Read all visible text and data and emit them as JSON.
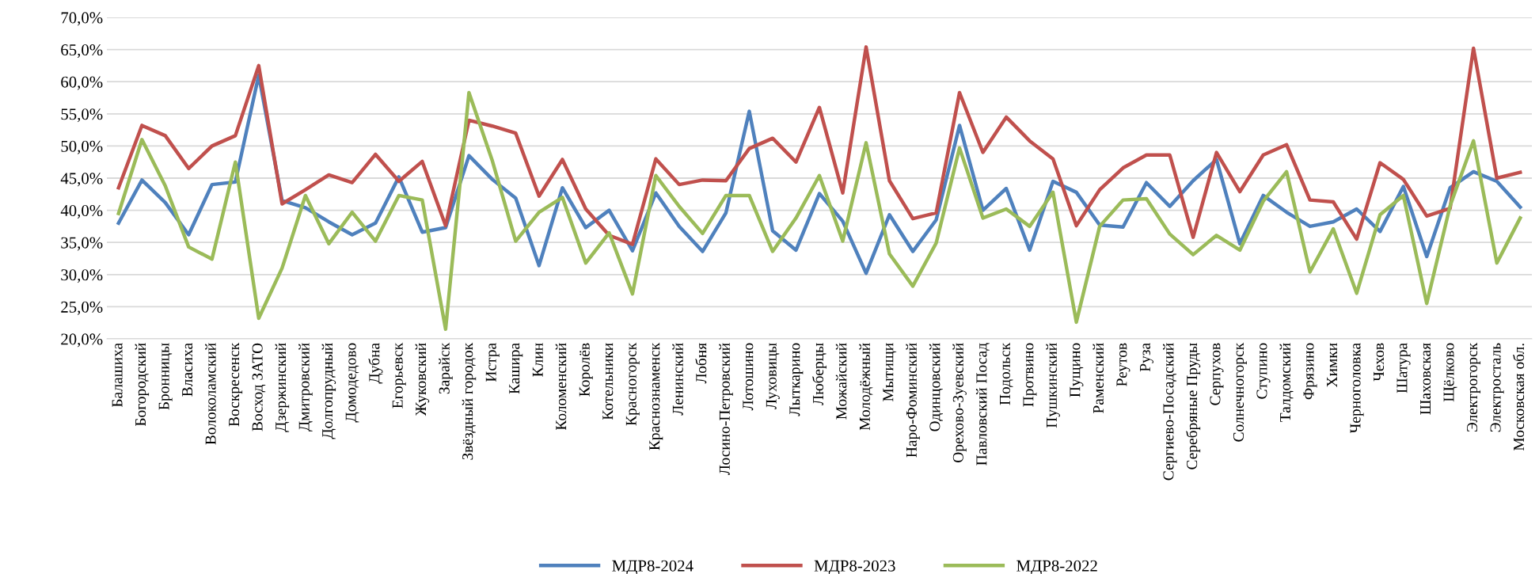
{
  "chart_data": {
    "type": "line",
    "categories": [
      "Балашиха",
      "Богородский",
      "Бронницы",
      "Власиха",
      "Волоколамский",
      "Воскресенск",
      "Восход ЗАТО",
      "Дзержинский",
      "Дмитровский",
      "Долгопрудный",
      "Домодедово",
      "Дубна",
      "Егорьевск",
      "Жуковский",
      "Зарайск",
      "Звёздный городок",
      "Истра",
      "Кашира",
      "Клин",
      "Коломенский",
      "Королёв",
      "Котельники",
      "Красногорск",
      "Краснознаменск",
      "Ленинский",
      "Лобня",
      "Лосино-Петровский",
      "Лотошино",
      "Луховицы",
      "Лыткарино",
      "Люберцы",
      "Можайский",
      "Молодёжный",
      "Мытищи",
      "Наро-Фоминский",
      "Одинцовский",
      "Орехово-Зуевский",
      "Павловский Посад",
      "Подольск",
      "Протвино",
      "Пушкинский",
      "Пущино",
      "Раменский",
      "Реутов",
      "Руза",
      "Сергиево-Посадский",
      "Серебряные Пруды",
      "Серпухов",
      "Солнечногорск",
      "Ступино",
      "Талдомский",
      "Фрязино",
      "Химки",
      "Черноголовка",
      "Чехов",
      "Шатура",
      "Шаховская",
      "Щёлково",
      "Электрогорск",
      "Электросталь",
      "Московская обл."
    ],
    "series": [
      {
        "name": "МДР8-2024",
        "color": "#4f81bd",
        "values": [
          38.0,
          44.7,
          41.2,
          36.2,
          44.0,
          44.4,
          61.0,
          41.5,
          40.4,
          38.2,
          36.2,
          38.0,
          45.2,
          36.6,
          37.3,
          48.5,
          44.8,
          41.9,
          31.4,
          43.5,
          37.3,
          40.0,
          33.7,
          42.7,
          37.5,
          33.6,
          39.6,
          55.4,
          36.8,
          33.8,
          42.6,
          38.3,
          30.2,
          39.3,
          33.6,
          38.5,
          53.2,
          40.0,
          43.4,
          33.8,
          44.5,
          42.8,
          37.7,
          37.4,
          44.3,
          40.6,
          44.6,
          47.9,
          34.8,
          42.3,
          39.7,
          37.5,
          38.2,
          40.2,
          36.7,
          43.7,
          32.8,
          43.5,
          46.0,
          44.5,
          40.5
        ]
      },
      {
        "name": "МДР8-2023",
        "color": "#c0504d",
        "values": [
          43.5,
          53.2,
          51.6,
          46.5,
          50.0,
          51.6,
          62.5,
          41.0,
          43.2,
          45.5,
          44.3,
          48.7,
          44.5,
          47.6,
          37.6,
          54.0,
          53.1,
          52.0,
          42.2,
          47.9,
          40.2,
          36.1,
          34.7,
          48.0,
          44.0,
          44.7,
          44.6,
          49.6,
          51.2,
          47.5,
          56.0,
          42.7,
          65.4,
          44.6,
          38.7,
          39.6,
          58.3,
          49.0,
          54.5,
          50.8,
          48.0,
          37.6,
          43.2,
          46.6,
          48.6,
          48.6,
          35.8,
          49.0,
          42.9,
          48.6,
          50.2,
          41.6,
          41.3,
          35.5,
          47.4,
          44.8,
          39.1,
          40.3,
          65.2,
          45.0,
          45.9
        ]
      },
      {
        "name": "МДР8-2022",
        "color": "#9bbb59",
        "values": [
          39.5,
          51.0,
          43.8,
          34.3,
          32.4,
          47.5,
          23.2,
          31.0,
          42.3,
          34.8,
          39.7,
          35.2,
          42.3,
          41.6,
          21.5,
          58.3,
          47.7,
          35.2,
          39.7,
          42.0,
          31.8,
          36.5,
          27.0,
          45.4,
          40.6,
          36.4,
          42.3,
          42.3,
          33.6,
          38.8,
          45.4,
          35.2,
          50.5,
          33.2,
          28.2,
          34.9,
          49.7,
          38.8,
          40.2,
          37.5,
          42.8,
          22.6,
          37.5,
          41.6,
          41.8,
          36.3,
          33.1,
          36.1,
          33.8,
          41.4,
          46.0,
          30.4,
          37.1,
          27.1,
          39.3,
          42.3,
          25.5,
          40.7,
          50.8,
          31.8,
          38.8
        ]
      }
    ],
    "ylim": [
      20,
      70
    ],
    "yticks": [
      {
        "value": 20,
        "label": "20,0%"
      },
      {
        "value": 25,
        "label": "25,0%"
      },
      {
        "value": 30,
        "label": "30,0%"
      },
      {
        "value": 35,
        "label": "35,0%"
      },
      {
        "value": 40,
        "label": "40,0%"
      },
      {
        "value": 45,
        "label": "45,0%"
      },
      {
        "value": 50,
        "label": "50,0%"
      },
      {
        "value": 55,
        "label": "55,0%"
      },
      {
        "value": 60,
        "label": "60,0%"
      },
      {
        "value": 65,
        "label": "65,0%"
      },
      {
        "value": 70,
        "label": "70,0%"
      }
    ],
    "grid": "y",
    "legend": "bottom",
    "marker": "none",
    "line_style": "solid"
  }
}
